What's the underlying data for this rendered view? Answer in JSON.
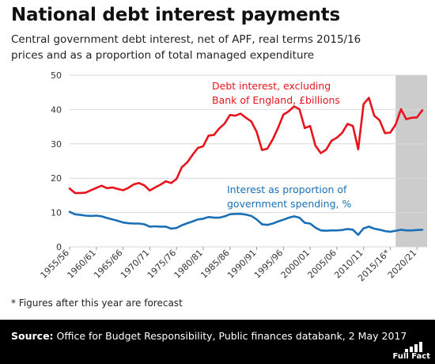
{
  "header": {
    "title": "National debt interest payments",
    "subtitle_line1": "Central government debt interest, net of APF, real terms 2015/16",
    "subtitle_line2": "prices and as a proportion of total managed expenditure"
  },
  "chart_data": {
    "type": "line",
    "title": "National debt interest payments",
    "ylim": [
      0,
      50
    ],
    "yticks": [
      0,
      10,
      20,
      30,
      40,
      50
    ],
    "xlabels": [
      "1955/56",
      "1960/61",
      "1965/66",
      "1970/71",
      "1975/76",
      "1980/81",
      "1985/86",
      "1990/91",
      "1995/96",
      "2000/01",
      "2005/06",
      "2010/11",
      "2015/16*",
      "2020/21"
    ],
    "x_start_year": 1955,
    "x_end_year": 2021,
    "forecast_start_year": 2016,
    "forecast_shading": "#cccccc",
    "grid": "horizontal",
    "series": [
      {
        "name": "Debt interest, excluding Bank of England, £billions",
        "label_line1": "Debt interest, excluding",
        "label_line2": "Bank of England, £billions",
        "color": "#e8141c",
        "x": [
          1955,
          1956,
          1957,
          1958,
          1959,
          1960,
          1961,
          1962,
          1963,
          1964,
          1965,
          1966,
          1967,
          1968,
          1969,
          1970,
          1971,
          1972,
          1973,
          1974,
          1975,
          1976,
          1977,
          1978,
          1979,
          1980,
          1981,
          1982,
          1983,
          1984,
          1985,
          1986,
          1987,
          1988,
          1989,
          1990,
          1991,
          1992,
          1993,
          1994,
          1995,
          1996,
          1997,
          1998,
          1999,
          2000,
          2001,
          2002,
          2003,
          2004,
          2005,
          2006,
          2007,
          2008,
          2009,
          2010,
          2011,
          2012,
          2013,
          2014,
          2015,
          2016,
          2017,
          2018,
          2019,
          2020,
          2021
        ],
        "values": [
          17,
          15.7,
          15.7,
          15.8,
          16.5,
          17.2,
          17.8,
          17.1,
          17.3,
          16.9,
          16.5,
          17.2,
          18.2,
          18.6,
          17.9,
          16.4,
          17.3,
          18.1,
          19.1,
          18.6,
          19.8,
          23.2,
          24.6,
          26.8,
          28.8,
          29.3,
          32.4,
          32.6,
          34.5,
          35.9,
          38.4,
          38.2,
          38.8,
          37.6,
          36.5,
          33.5,
          28.2,
          28.6,
          31.3,
          34.6,
          38.5,
          39.5,
          40.9,
          40.1,
          34.6,
          35.2,
          29.5,
          27.3,
          28.3,
          30.9,
          31.8,
          33.2,
          35.8,
          35.2,
          28.4,
          41.6,
          43.4,
          38.2,
          36.9,
          33.1,
          33.3,
          35.6,
          40.1,
          37.2,
          37.6,
          37.7,
          39.8
        ]
      },
      {
        "name": "Interest as proportion of government spending, %",
        "label_line1": "Interest as proportion of",
        "label_line2": "government spending, %",
        "color": "#1a6fb5",
        "x": [
          1955,
          1956,
          1957,
          1958,
          1959,
          1960,
          1961,
          1962,
          1963,
          1964,
          1965,
          1966,
          1967,
          1968,
          1969,
          1970,
          1971,
          1972,
          1973,
          1974,
          1975,
          1976,
          1977,
          1978,
          1979,
          1980,
          1981,
          1982,
          1983,
          1984,
          1985,
          1986,
          1987,
          1988,
          1989,
          1990,
          1991,
          1992,
          1993,
          1994,
          1995,
          1996,
          1997,
          1998,
          1999,
          2000,
          2001,
          2002,
          2003,
          2004,
          2005,
          2006,
          2007,
          2008,
          2009,
          2010,
          2011,
          2012,
          2013,
          2014,
          2015,
          2016,
          2017,
          2018,
          2019,
          2020,
          2021
        ],
        "values": [
          10.2,
          9.5,
          9.3,
          9.1,
          9.0,
          9.1,
          8.9,
          8.4,
          8.0,
          7.6,
          7.1,
          6.9,
          6.8,
          6.8,
          6.6,
          5.9,
          6.0,
          5.9,
          5.9,
          5.3,
          5.5,
          6.3,
          6.9,
          7.4,
          8.0,
          8.2,
          8.7,
          8.5,
          8.5,
          8.9,
          9.5,
          9.6,
          9.6,
          9.4,
          9.0,
          8.0,
          6.6,
          6.4,
          6.8,
          7.4,
          7.9,
          8.5,
          8.9,
          8.5,
          7.0,
          6.8,
          5.6,
          4.8,
          4.7,
          4.8,
          4.8,
          4.9,
          5.2,
          5.0,
          3.5,
          5.4,
          5.9,
          5.3,
          5.0,
          4.6,
          4.4,
          4.7,
          5.0,
          4.8,
          4.8,
          4.9,
          5.0
        ]
      }
    ]
  },
  "footnote": "* Figures after this year are forecast",
  "source": {
    "label": "Source:",
    "text": "Office for Budget Responsibility, Public finances databank, 2 May 2017"
  },
  "brand": {
    "name": "Full Fact",
    "logo_icon": "full-fact-logo-icon"
  }
}
